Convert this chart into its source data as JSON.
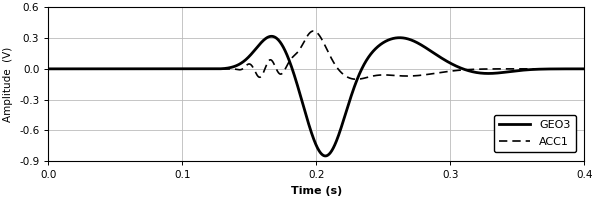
{
  "title": "",
  "xlabel": "Time (s)",
  "ylabel": "Amplitude  (V)",
  "xlim": [
    0.0,
    0.4
  ],
  "ylim": [
    -0.9,
    0.6
  ],
  "yticks": [
    -0.9,
    -0.6,
    -0.3,
    0.0,
    0.3,
    0.6
  ],
  "xticks": [
    0.0,
    0.1,
    0.2,
    0.3,
    0.4
  ],
  "geo3_color": "#000000",
  "acc1_color": "#000000",
  "geo3_lw": 2.0,
  "acc1_lw": 1.2,
  "legend_labels": [
    "GEO3",
    "ACC1"
  ],
  "background_color": "#ffffff",
  "grid_color": "#bbbbbb"
}
